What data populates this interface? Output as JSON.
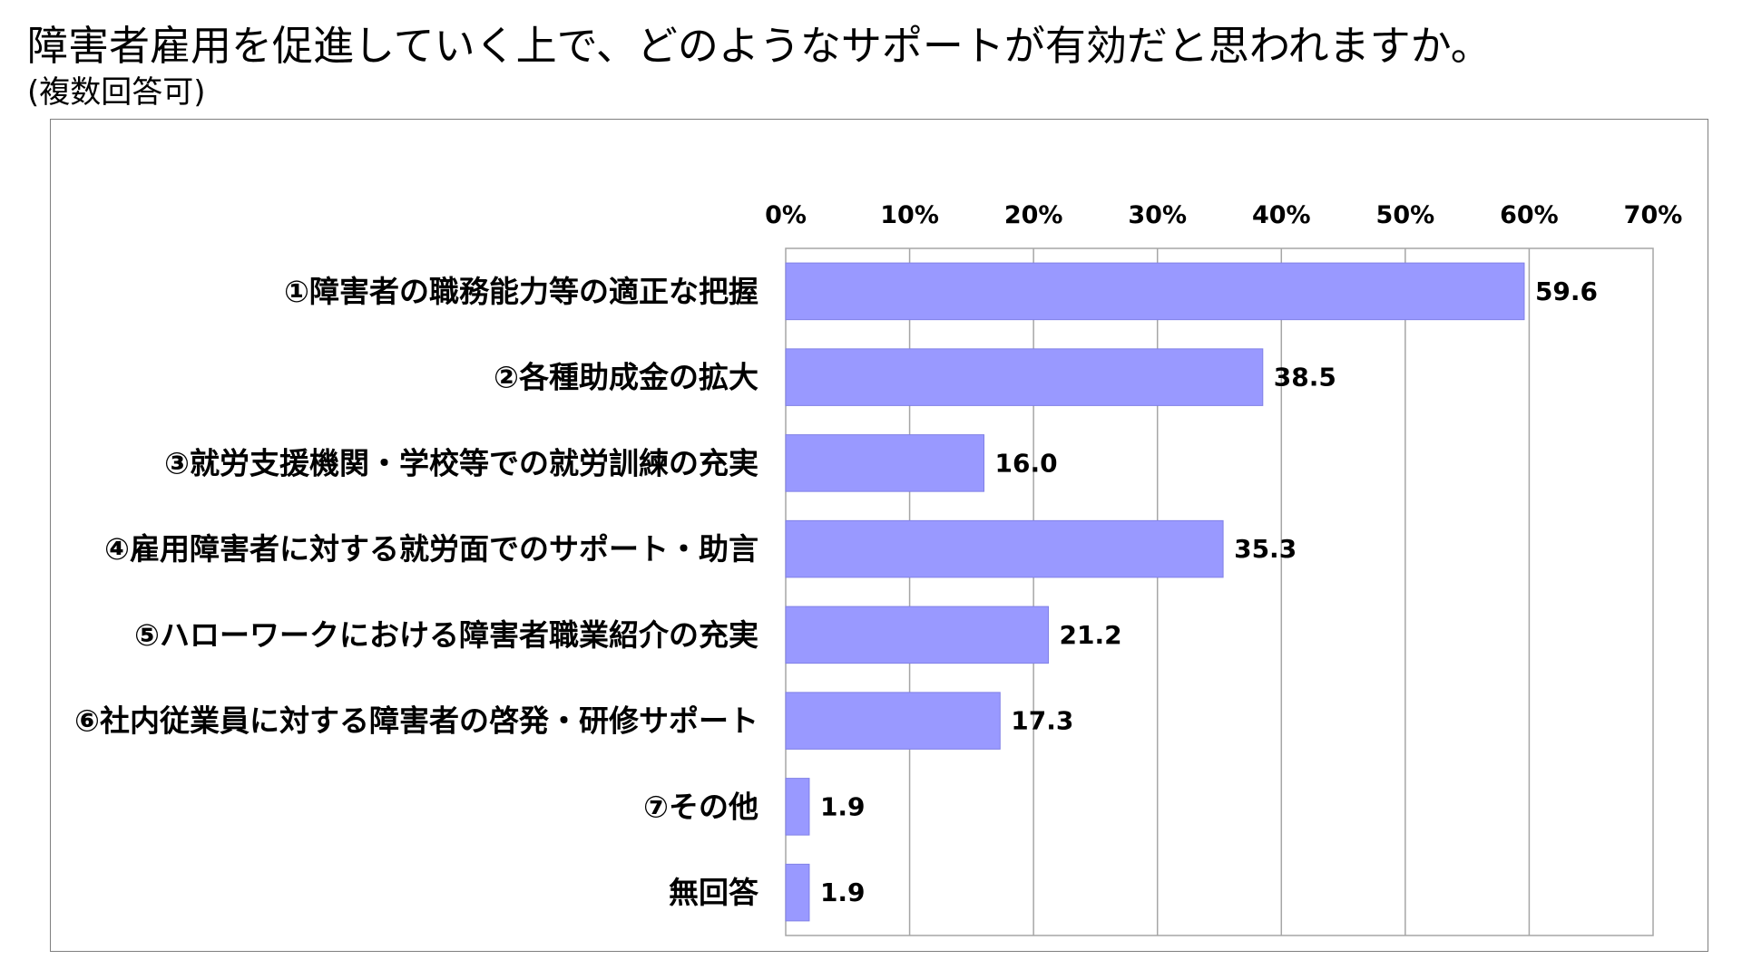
{
  "title": "障害者雇用を促進していく上で、どのようなサポートが有効だと思われますか。",
  "subtitle": "(複数回答可)",
  "chart_data": {
    "type": "bar",
    "orientation": "horizontal",
    "categories": [
      "①障害者の職務能力等の適正な把握",
      "②各種助成金の拡大",
      "③就労支援機関・学校等での就労訓練の充実",
      "④雇用障害者に対する就労面でのサポート・助言",
      "⑤ハローワークにおける障害者職業紹介の充実",
      "⑥社内従業員に対する障害者の啓発・研修サポート",
      "⑦その他",
      "無回答"
    ],
    "values": [
      59.6,
      38.5,
      16.0,
      35.3,
      21.2,
      17.3,
      1.9,
      1.9
    ],
    "data_labels": [
      "59.6",
      "38.5",
      "16.0",
      "35.3",
      "21.2",
      "17.3",
      "1.9",
      "1.9"
    ],
    "x_ticks": [
      "0%",
      "10%",
      "20%",
      "30%",
      "40%",
      "50%",
      "60%",
      "70%"
    ],
    "xlim": [
      0,
      70
    ],
    "tick_step": 10,
    "x_axis_position": "top",
    "grid": true,
    "legend": "none",
    "bar_color": "#9999ff",
    "bar_edge_color": "#8080e6",
    "grid_color": "#a6a6a6",
    "plot_border_color": "#a6a6a6",
    "frame_color": "#7f7f7f"
  }
}
